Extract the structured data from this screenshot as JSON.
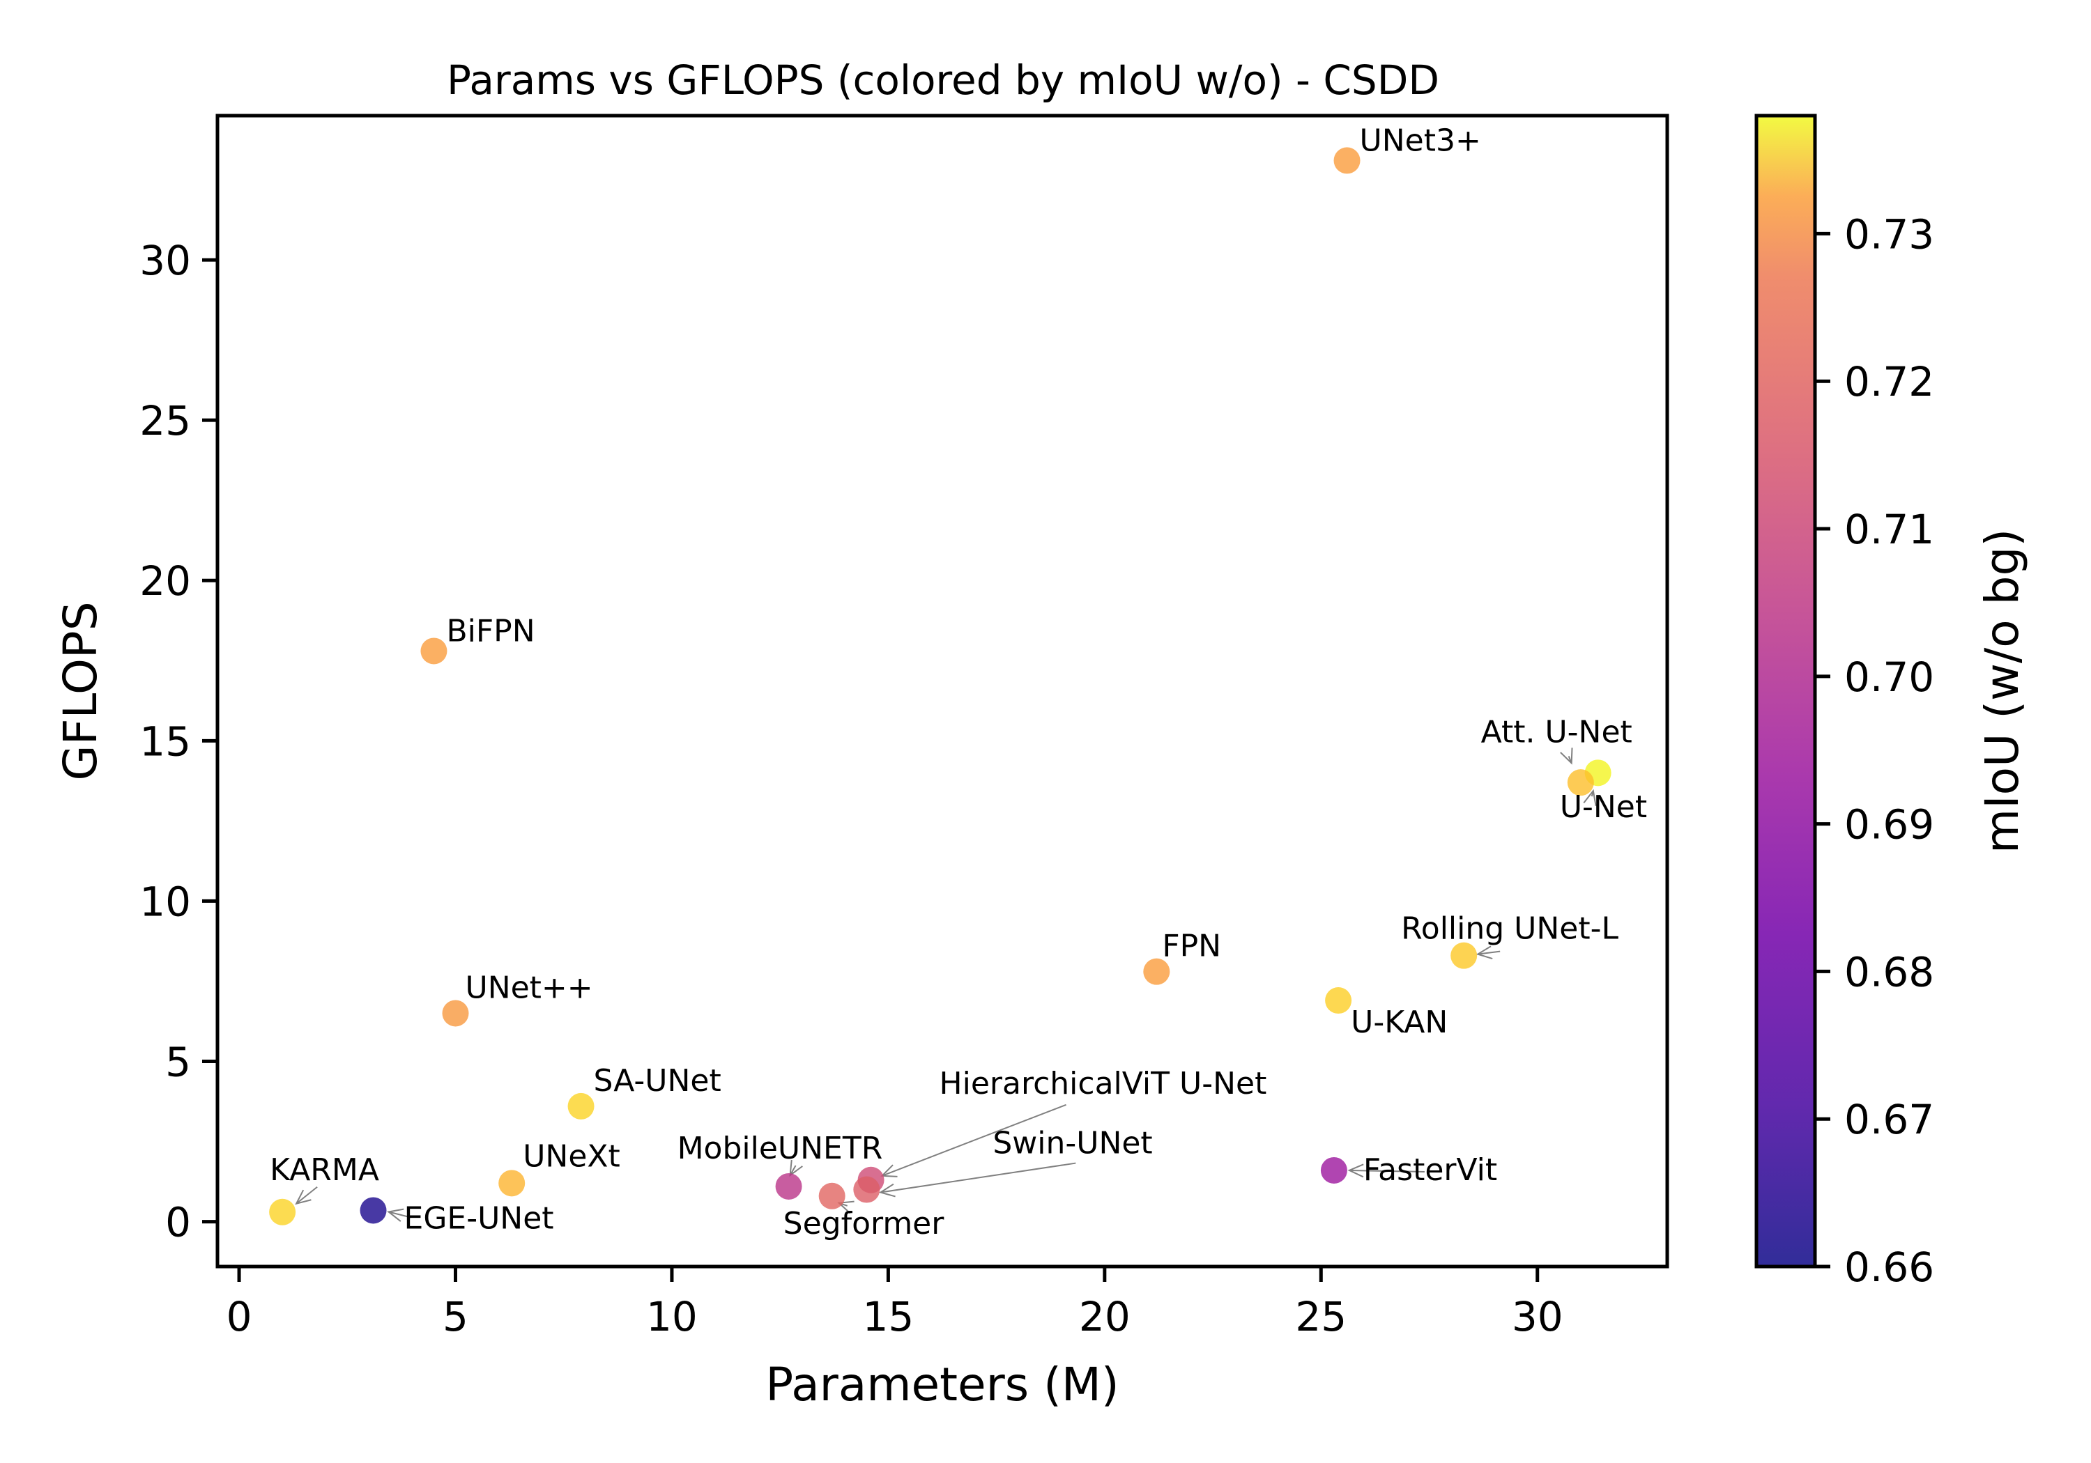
{
  "chart_data": {
    "type": "scatter",
    "title": "Params vs GFLOPS (colored by mIoU w/o) - CSDD",
    "xlabel": "Parameters (M)",
    "ylabel": "GFLOPS",
    "xlim": [
      -0.5,
      33
    ],
    "ylim": [
      -1.4,
      34.5
    ],
    "xticks": [
      0,
      5,
      10,
      15,
      20,
      25,
      30
    ],
    "yticks": [
      0,
      5,
      10,
      15,
      20,
      25,
      30
    ],
    "grid": false,
    "colormap": "plasma",
    "colorbar": {
      "label": "mIoU (w/o bg)",
      "range": [
        0.66,
        0.738
      ],
      "ticks": [
        0.66,
        0.67,
        0.68,
        0.69,
        0.7,
        0.71,
        0.72,
        0.73
      ],
      "tick_labels": [
        "0.66",
        "0.67",
        "0.68",
        "0.69",
        "0.70",
        "0.71",
        "0.72",
        "0.73"
      ]
    },
    "points": [
      {
        "name": "UNet3+",
        "x": 25.6,
        "y": 33.1,
        "miou": 0.72
      },
      {
        "name": "BiFPN",
        "x": 4.5,
        "y": 17.8,
        "miou": 0.72
      },
      {
        "name": "Att. U-Net",
        "x": 31.4,
        "y": 14.0,
        "miou": 0.737
      },
      {
        "name": "U-Net",
        "x": 31.0,
        "y": 13.7,
        "miou": 0.727
      },
      {
        "name": "Rolling UNet-L",
        "x": 28.3,
        "y": 8.3,
        "miou": 0.729
      },
      {
        "name": "FPN",
        "x": 21.2,
        "y": 7.8,
        "miou": 0.72
      },
      {
        "name": "U-KAN",
        "x": 25.4,
        "y": 6.9,
        "miou": 0.73
      },
      {
        "name": "UNet++",
        "x": 5.0,
        "y": 6.5,
        "miou": 0.719
      },
      {
        "name": "SA-UNet",
        "x": 7.9,
        "y": 3.6,
        "miou": 0.731
      },
      {
        "name": "HierarchicalViT U-Net",
        "x": 14.6,
        "y": 1.3,
        "miou": 0.7
      },
      {
        "name": "Swin-UNet",
        "x": 14.5,
        "y": 1.0,
        "miou": 0.705
      },
      {
        "name": "MobileUNETR",
        "x": 12.7,
        "y": 1.1,
        "miou": 0.694
      },
      {
        "name": "Segformer",
        "x": 13.7,
        "y": 0.8,
        "miou": 0.707
      },
      {
        "name": "FasterVit",
        "x": 25.3,
        "y": 1.6,
        "miou": 0.686
      },
      {
        "name": "UNeXt",
        "x": 6.3,
        "y": 1.2,
        "miou": 0.725
      },
      {
        "name": "KARMA",
        "x": 1.0,
        "y": 0.3,
        "miou": 0.731
      },
      {
        "name": "EGE-UNet",
        "x": 3.1,
        "y": 0.35,
        "miou": 0.662
      }
    ]
  }
}
